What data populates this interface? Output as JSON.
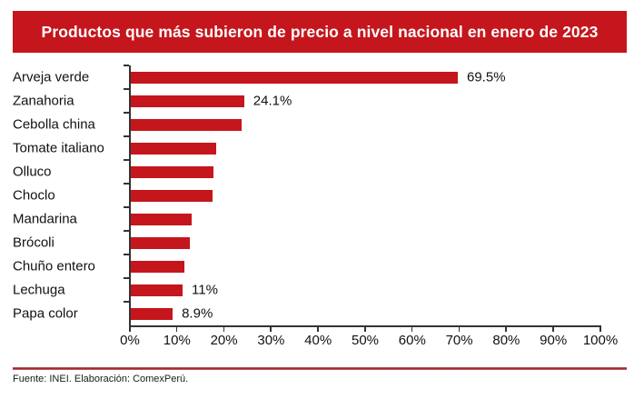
{
  "banner": {
    "title": "Productos que más subieron de precio a nivel nacional en enero de 2023",
    "bg_color": "#C4161C",
    "text_color": "#FFFFFF"
  },
  "chart_data": {
    "type": "bar",
    "orientation": "horizontal",
    "title": "Productos que más subieron de precio a nivel nacional en enero de 2023",
    "categories": [
      "Arveja verde",
      "Zanahoria",
      "Cebolla china",
      "Tomate italiano",
      "Olluco",
      "Choclo",
      "Mandarina",
      "Brócoli",
      "Chuño entero",
      "Lechuga",
      "Papa color"
    ],
    "values": [
      69.5,
      24.1,
      23.6,
      18.1,
      17.5,
      17.3,
      13.0,
      12.6,
      11.3,
      11.0,
      8.9
    ],
    "bar_labels": [
      "69.5%",
      "24.1%",
      "",
      "",
      "",
      "",
      "",
      "",
      "",
      "11%",
      "8.9%"
    ],
    "x_ticks": [
      "0%",
      "10%",
      "20%",
      "30%",
      "40%",
      "50%",
      "60%",
      "70%",
      "80%",
      "90%",
      "100%"
    ],
    "xlim": [
      0,
      100
    ],
    "xlabel": "",
    "ylabel": "",
    "grid": "off",
    "legend": "none",
    "bar_color": "#C4161C",
    "axis_color": "#333333"
  },
  "footer": {
    "source": "Fuente: INEI. Elaboración: ComexPerú."
  }
}
